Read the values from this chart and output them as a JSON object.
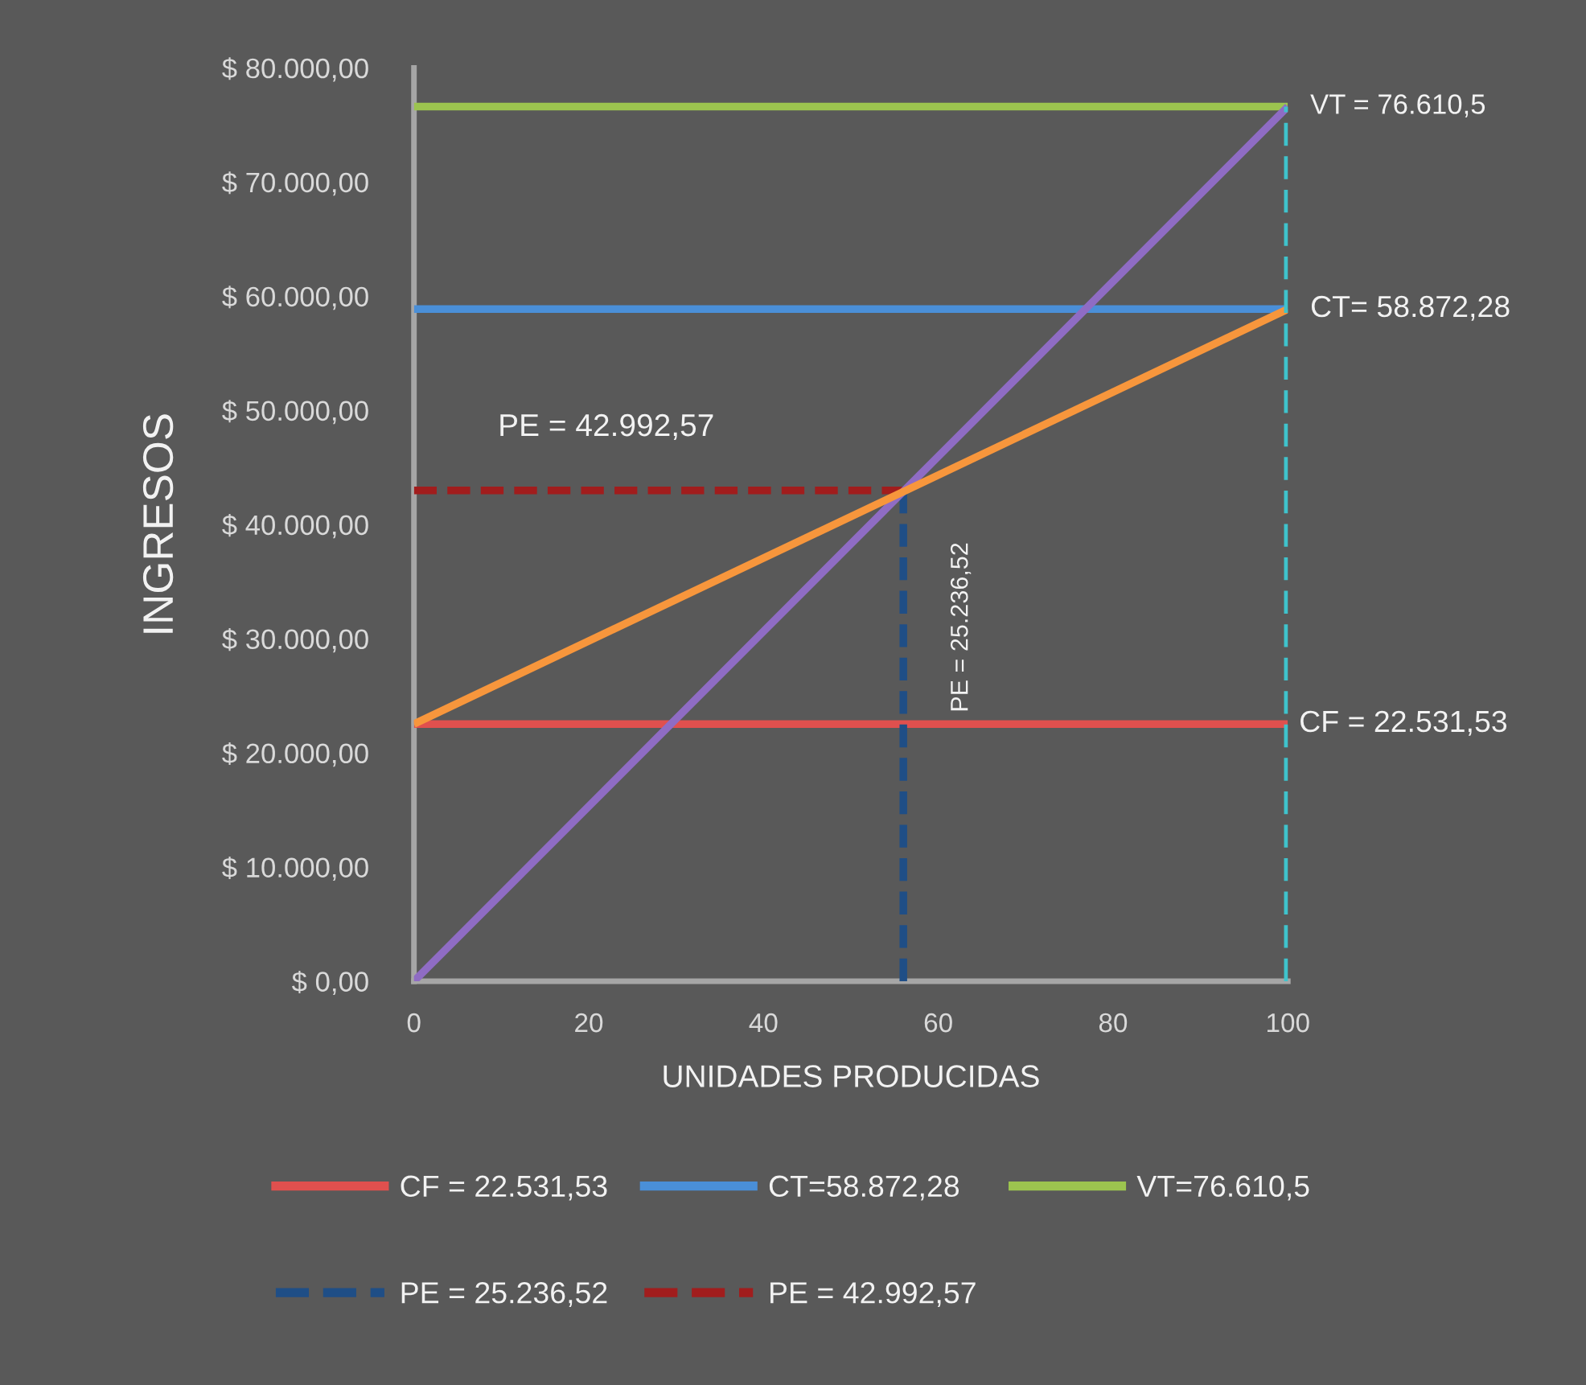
{
  "chart_data": {
    "type": "line",
    "xlabel": "UNIDADES PRODUCIDAS",
    "ylabel": "INGRESOS",
    "xlim": [
      0,
      100
    ],
    "xticks": [
      0,
      20,
      40,
      60,
      80,
      100
    ],
    "ylim": [
      0,
      80000
    ],
    "yticks": [
      {
        "value": 0,
        "label": "$ 0,00"
      },
      {
        "value": 10000,
        "label": "$ 10.000,00"
      },
      {
        "value": 20000,
        "label": "$ 20.000,00"
      },
      {
        "value": 30000,
        "label": "$ 30.000,00"
      },
      {
        "value": 40000,
        "label": "$ 40.000,00"
      },
      {
        "value": 50000,
        "label": "$ 50.000,00"
      },
      {
        "value": 60000,
        "label": "$ 60.000,00"
      },
      {
        "value": 70000,
        "label": "$ 70.000,00"
      },
      {
        "value": 80000,
        "label": "$ 80.000,00"
      }
    ],
    "series": [
      {
        "name": "CF = 22.531,53",
        "color": "#e0504e",
        "x": [
          0,
          100
        ],
        "values": [
          22531.53,
          22531.53
        ],
        "line_style": "solid"
      },
      {
        "name": "CT=58.872,28",
        "color": "#4a8fd8",
        "x": [
          0,
          100
        ],
        "values": [
          58872.28,
          58872.28
        ],
        "line_style": "solid"
      },
      {
        "name": "VT=76.610,5",
        "color": "#9cc44f",
        "x": [
          0,
          100
        ],
        "values": [
          76610.5,
          76610.5
        ],
        "line_style": "solid"
      },
      {
        "name": "PE = 25.236,52",
        "color": "#1f4e86",
        "x": [
          56,
          56
        ],
        "values": [
          0,
          42992.57
        ],
        "line_style": "dashed"
      },
      {
        "name": "PE = 42.992,57",
        "color": "#a11d1d",
        "x": [
          0,
          56
        ],
        "values": [
          42992.57,
          42992.57
        ],
        "line_style": "dashed"
      },
      {
        "color": "#8f6cc4",
        "x": [
          0,
          100
        ],
        "values": [
          0,
          76610.5
        ],
        "line_style": "solid"
      },
      {
        "color": "#f7963c",
        "x": [
          0,
          100
        ],
        "values": [
          22531.53,
          58872.28
        ],
        "line_style": "solid"
      },
      {
        "color": "#3fc3cc",
        "x": [
          100,
          100
        ],
        "values": [
          0,
          76610.5
        ],
        "line_style": "dashed"
      }
    ],
    "annotations": [
      {
        "text": "VT = 76.610,5",
        "x": 100,
        "y": 76610.5
      },
      {
        "text": "CT= 58.872,28",
        "x": 100,
        "y": 58872.28
      },
      {
        "text": "CF = 22.531,53",
        "x": 100,
        "y": 22531.53
      },
      {
        "text": "PE = 42.992,57",
        "x": 22,
        "y": 42992.57
      },
      {
        "text": "PE = 25.236,52",
        "x": 56,
        "y": 31000
      }
    ],
    "legend": "bottom"
  }
}
